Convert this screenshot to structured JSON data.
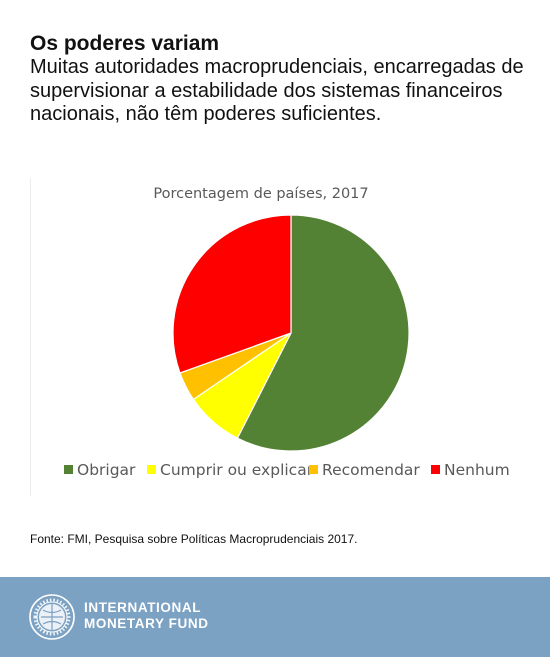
{
  "header": {
    "title": "Os poderes variam",
    "subtitle": "Muitas autoridades macroprudenciais, encarregadas de supervisionar a estabilidade dos sistemas financeiros nacionais, não têm poderes suficientes."
  },
  "chart_data": {
    "type": "pie",
    "title": "Porcentagem de países, 2017",
    "categories": [
      "Obrigar",
      "Cumprir ou explicar",
      "Recomendar",
      "Nenhum"
    ],
    "values": [
      57.5,
      8,
      4,
      30.5
    ],
    "colors": [
      "#548235",
      "#ffff00",
      "#ffc000",
      "#ff0000"
    ],
    "legend": "bottom",
    "start_angle_deg": 0,
    "direction": "clockwise"
  },
  "source": "Fonte: FMI, Pesquisa sobre Políticas Macroprudenciais 2017.",
  "footer": {
    "org_line1": "INTERNATIONAL",
    "org_line2": "MONETARY FUND",
    "logo_icon": "imf-seal-icon"
  }
}
